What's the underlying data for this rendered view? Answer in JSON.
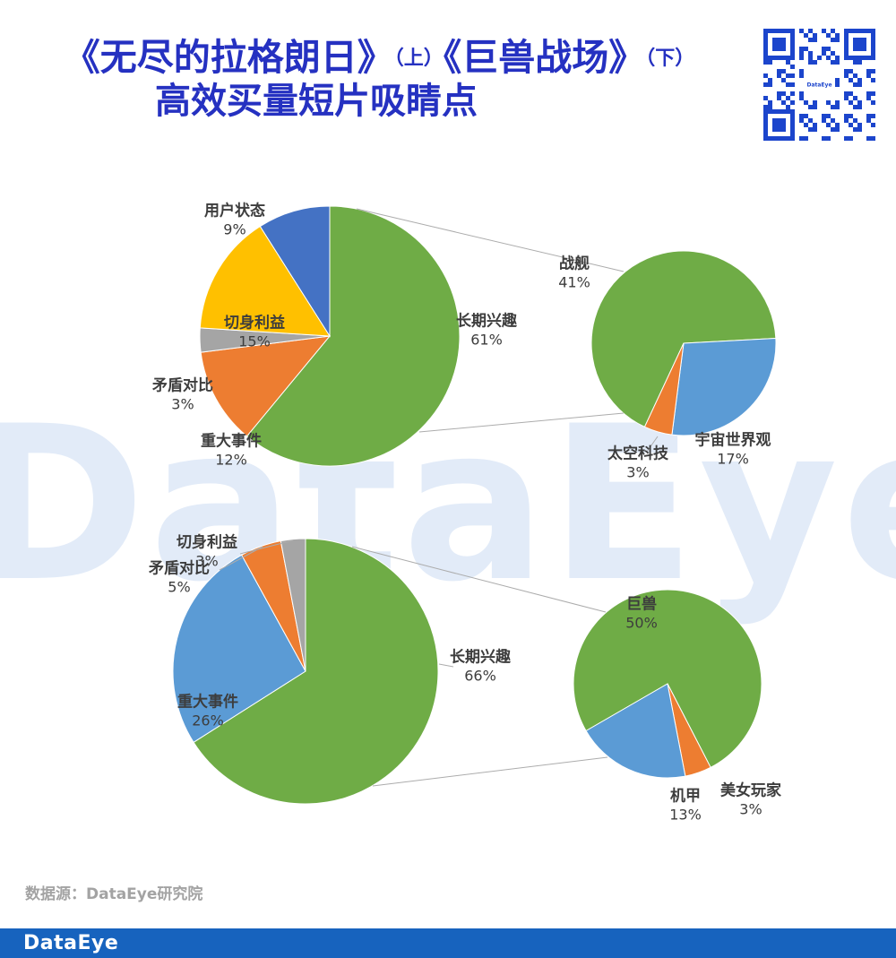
{
  "brand": "DataEye",
  "title": {
    "part1": "《无尽的拉格朗日》",
    "part1_tag": "（上）",
    "part2": "《巨兽战场》",
    "part2_tag": "（下）",
    "line2": "高效买量短片吸睛点"
  },
  "source": "数据源：DataEye研究院",
  "icons": {
    "qr": "qr-code"
  },
  "colors": {
    "title_blue": "#2531C1",
    "footer_blue": "#1763BE",
    "qr_blue": "#1C45CC",
    "green": "#6FAC46",
    "blue_dark": "#4472C4",
    "blue_light": "#5B9BD5",
    "orange": "#ED7D31",
    "gray": "#A5A5A5",
    "yellow": "#FFC000",
    "label_text": "#3D3D3D",
    "watermark": "#E2EBF8"
  },
  "chart_data": [
    {
      "type": "pie",
      "id": "top-main",
      "start_angle": 0,
      "slices": [
        {
          "label": "长期兴趣",
          "pct": 61,
          "pct_label": "61%",
          "color": "#6FAC46"
        },
        {
          "label": "重大事件",
          "pct": 12,
          "pct_label": "12%",
          "color": "#ED7D31"
        },
        {
          "label": "矛盾对比",
          "pct": 3,
          "pct_label": "3%",
          "color": "#A5A5A5"
        },
        {
          "label": "切身利益",
          "pct": 15,
          "pct_label": "15%",
          "color": "#FFC000"
        },
        {
          "label": "用户状态",
          "pct": 9,
          "pct_label": "9%",
          "color": "#4472C4"
        }
      ]
    },
    {
      "type": "pie",
      "id": "top-sub",
      "start_angle": 205,
      "slices": [
        {
          "label": "战舰",
          "pct": 41,
          "pct_label": "41%",
          "color": "#6FAC46"
        },
        {
          "label": "宇宙世界观",
          "pct": 17,
          "pct_label": "17%",
          "color": "#5B9BD5"
        },
        {
          "label": "太空科技",
          "pct": 3,
          "pct_label": "3%",
          "color": "#ED7D31"
        }
      ]
    },
    {
      "type": "pie",
      "id": "bottom-main",
      "start_angle": 0,
      "slices": [
        {
          "label": "长期兴趣",
          "pct": 66,
          "pct_label": "66%",
          "color": "#6FAC46"
        },
        {
          "label": "重大事件",
          "pct": 26,
          "pct_label": "26%",
          "color": "#5B9BD5"
        },
        {
          "label": "矛盾对比",
          "pct": 5,
          "pct_label": "5%",
          "color": "#ED7D31"
        },
        {
          "label": "切身利益",
          "pct": 3,
          "pct_label": "3%",
          "color": "#A5A5A5"
        }
      ]
    },
    {
      "type": "pie",
      "id": "bottom-sub",
      "start_angle": 240,
      "slices": [
        {
          "label": "巨兽",
          "pct": 50,
          "pct_label": "50%",
          "color": "#6FAC46"
        },
        {
          "label": "美女玩家",
          "pct": 3,
          "pct_label": "3%",
          "color": "#ED7D31"
        },
        {
          "label": "机甲",
          "pct": 13,
          "pct_label": "13%",
          "color": "#5B9BD5"
        }
      ]
    }
  ]
}
